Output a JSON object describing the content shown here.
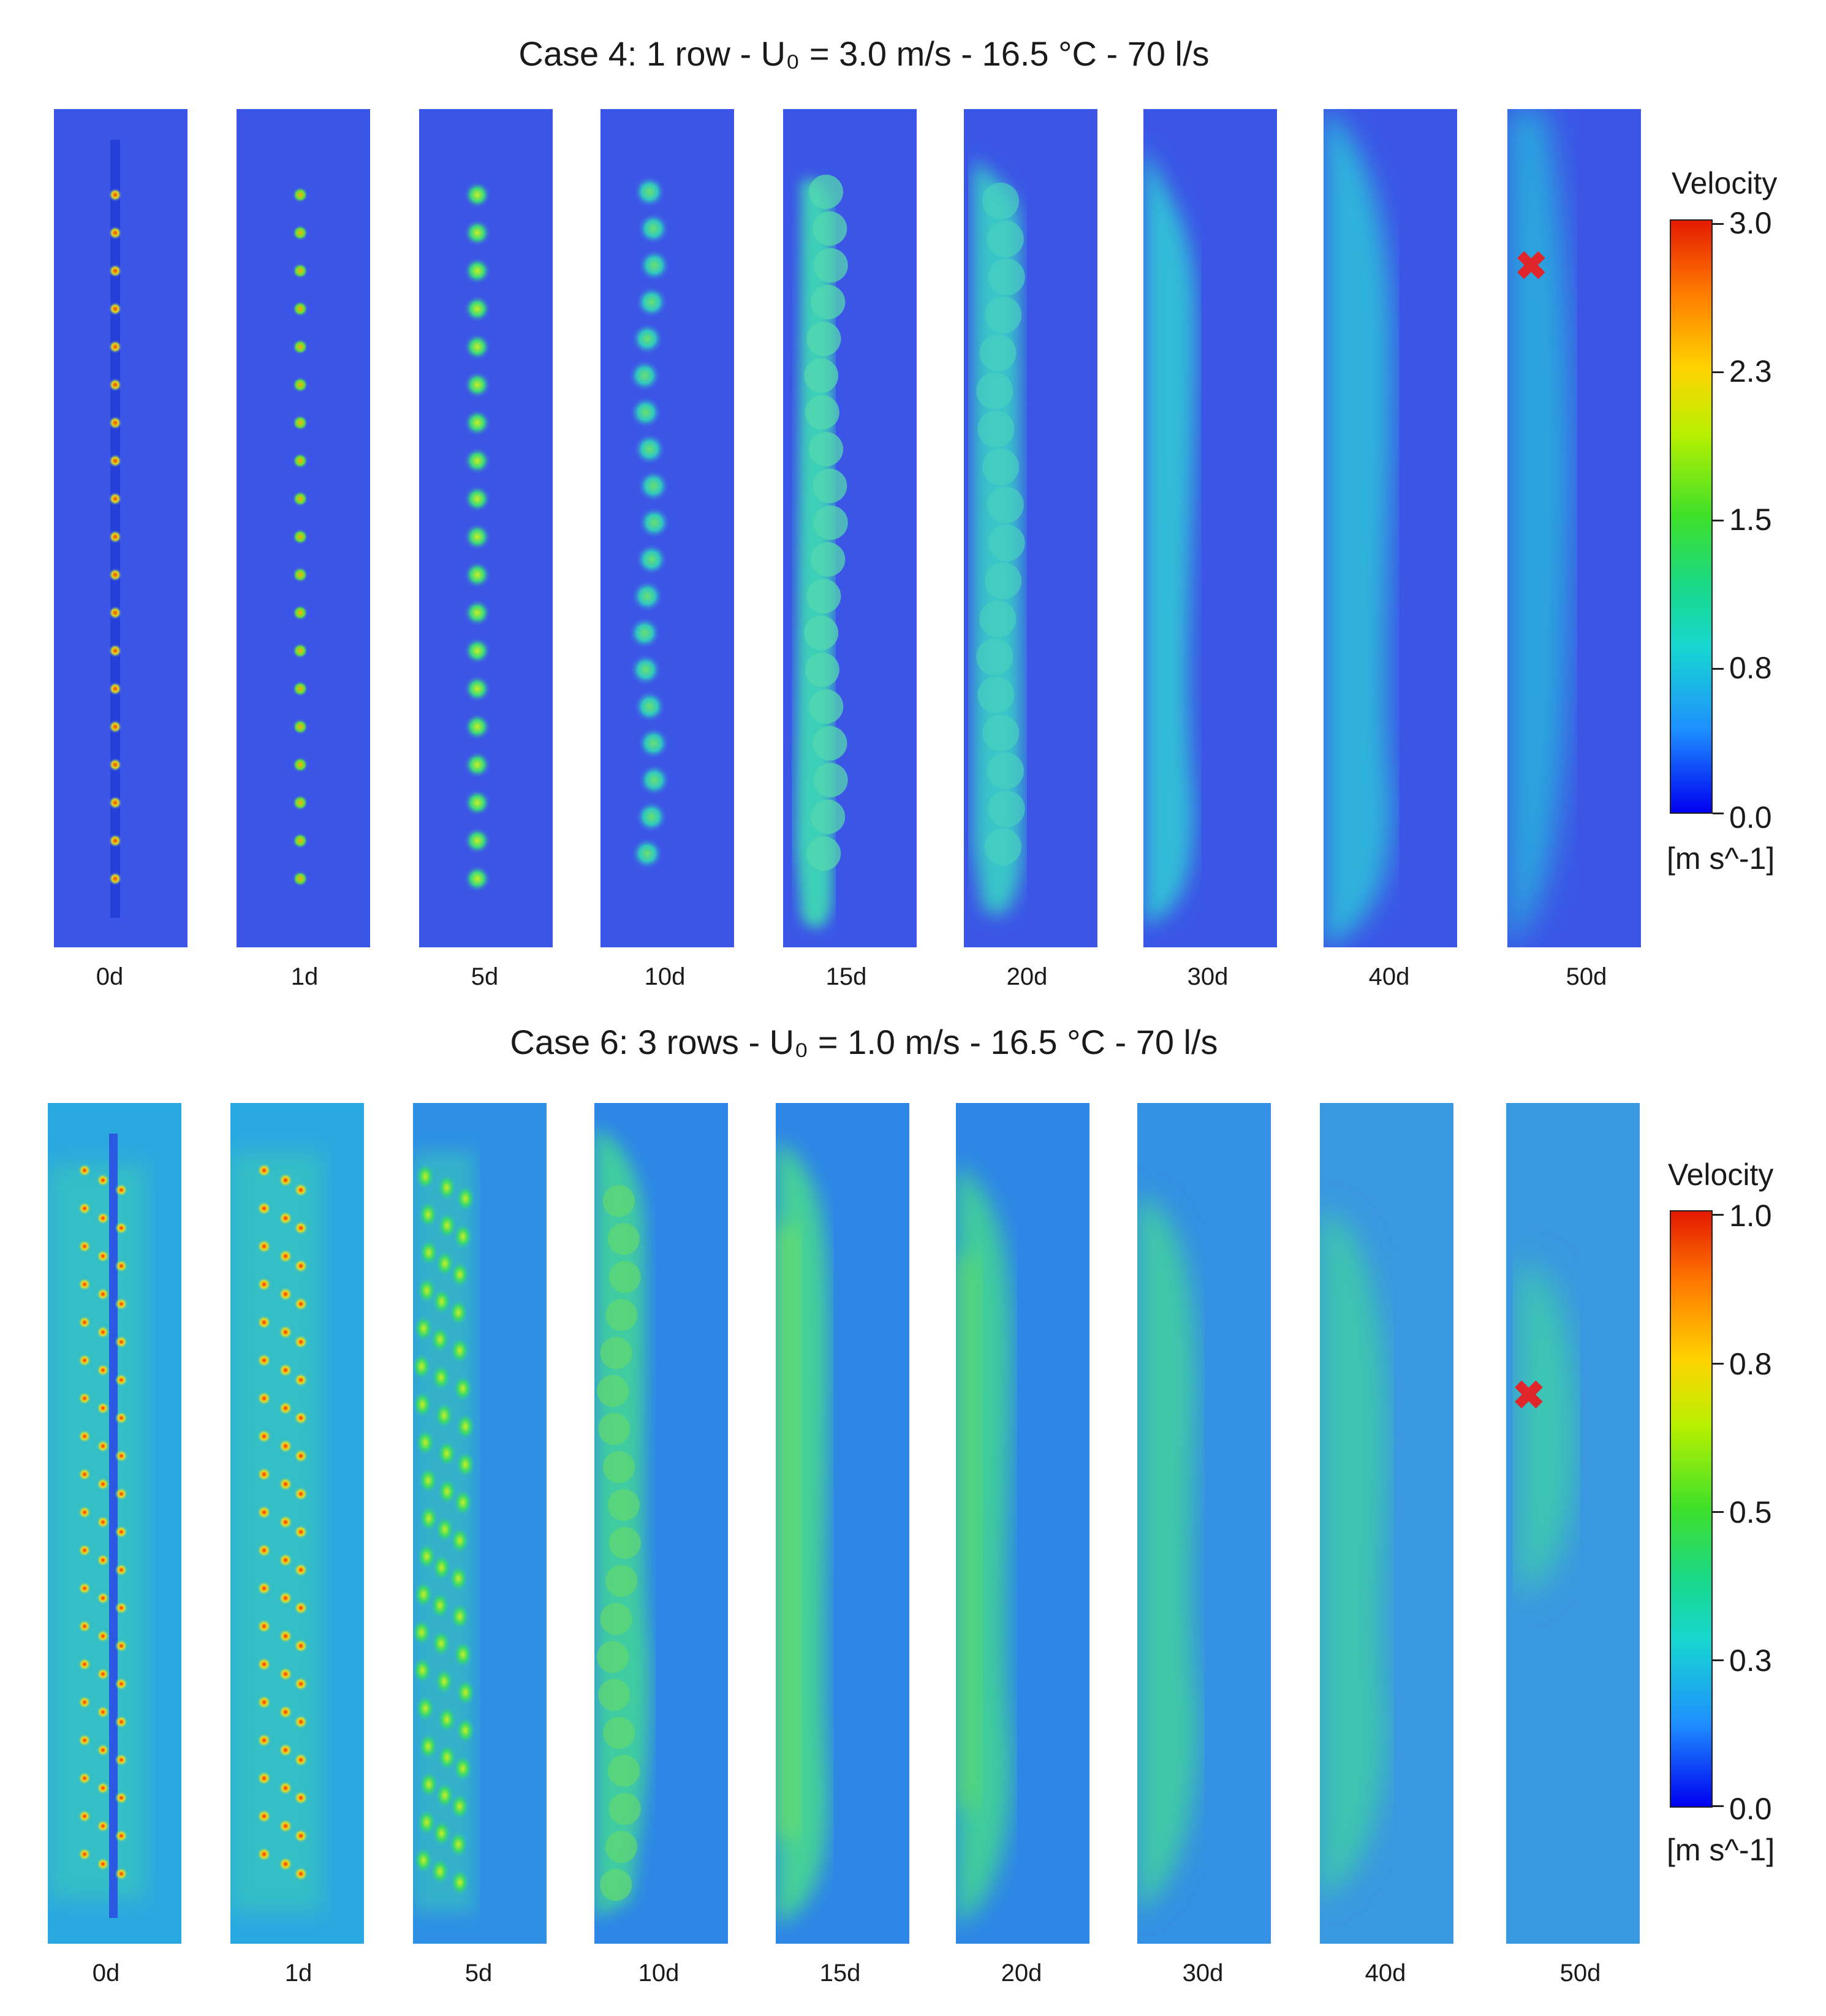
{
  "case4": {
    "title": "Case 4: 1 row - U₀ = 3.0 m/s - 16.5 °C -  70 l/s",
    "panels": [
      "0d",
      "1d",
      "5d",
      "10d",
      "15d",
      "20d",
      "30d",
      "40d",
      "50d"
    ],
    "legend": {
      "title": "Velocity",
      "ticks": [
        "3.0",
        "2.3",
        "1.5",
        "0.8",
        "0.0"
      ],
      "unit": "[m s^-1]"
    },
    "marker": "✖"
  },
  "case6": {
    "title": "Case 6: 3 rows - U₀ = 1.0 m/s - 16.5 °C -  70 l/s",
    "panels": [
      "0d",
      "1d",
      "5d",
      "10d",
      "15d",
      "20d",
      "30d",
      "40d",
      "50d"
    ],
    "legend": {
      "title": "Velocity",
      "ticks": [
        "1.0",
        "0.8",
        "0.5",
        "0.3",
        "0.0"
      ],
      "unit": "[m s^-1]"
    },
    "marker": "✖"
  }
}
